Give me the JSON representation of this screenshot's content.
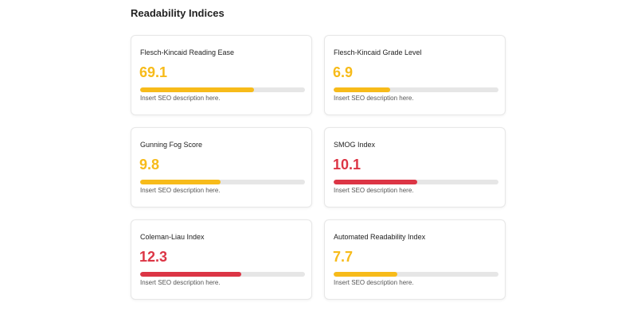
{
  "section": {
    "title": "Readability Indices"
  },
  "colors": {
    "warning": "#f7bb1a",
    "danger": "#dc3545",
    "track": "#e6e6e6"
  },
  "cards": [
    {
      "title": "Flesch-Kincaid Reading Ease",
      "value": "69.1",
      "progress_percent": 69.1,
      "status": "warning",
      "description": "Insert SEO description here."
    },
    {
      "title": "Flesch-Kincaid Grade Level",
      "value": "6.9",
      "progress_percent": 34.5,
      "status": "warning",
      "description": "Insert SEO description here."
    },
    {
      "title": "Gunning Fog Score",
      "value": "9.8",
      "progress_percent": 49,
      "status": "warning",
      "description": "Insert SEO description here."
    },
    {
      "title": "SMOG Index",
      "value": "10.1",
      "progress_percent": 50.5,
      "status": "danger",
      "description": "Insert SEO description here."
    },
    {
      "title": "Coleman-Liau Index",
      "value": "12.3",
      "progress_percent": 61.5,
      "status": "danger",
      "description": "Insert SEO description here."
    },
    {
      "title": "Automated Readability Index",
      "value": "7.7",
      "progress_percent": 38.5,
      "status": "warning",
      "description": "Insert SEO description here."
    }
  ]
}
